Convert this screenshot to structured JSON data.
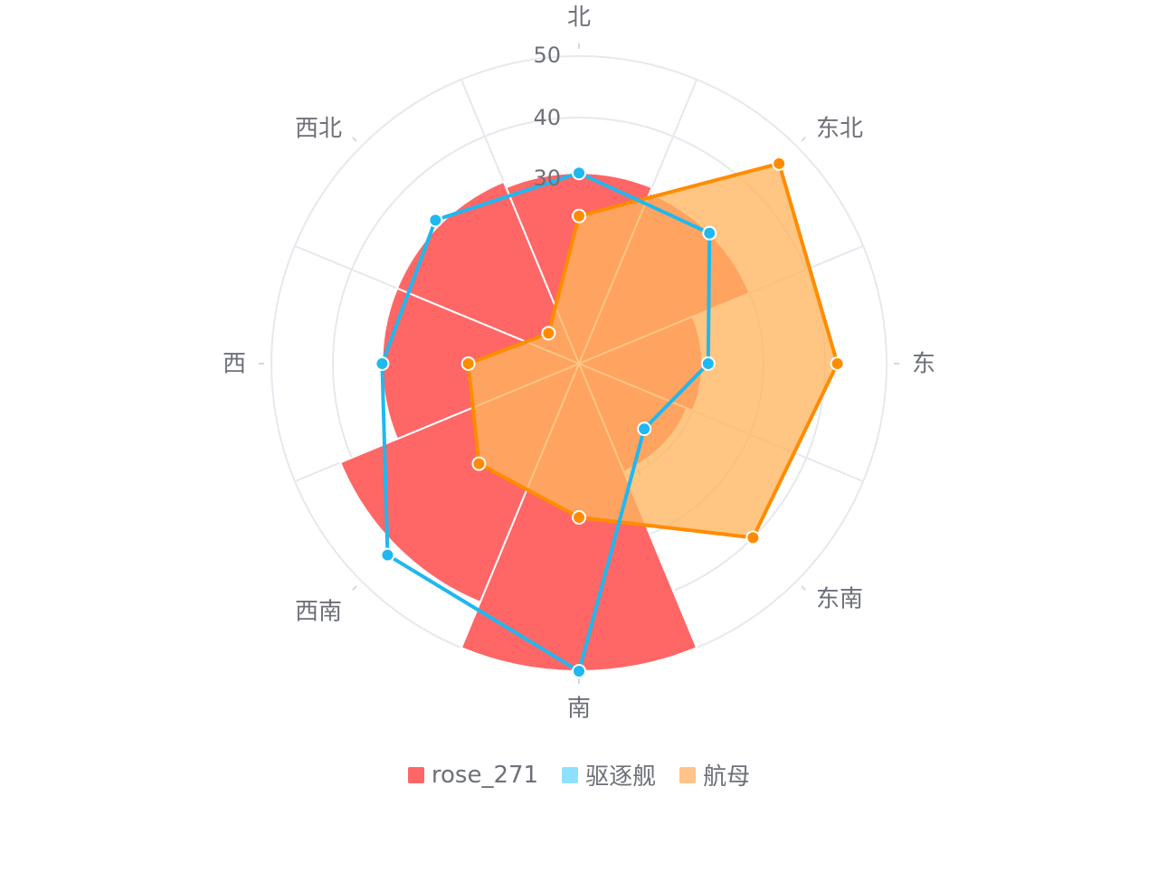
{
  "chart_data": {
    "type": "polar",
    "directions": [
      "北",
      "东北",
      "东",
      "东南",
      "南",
      "西南",
      "西",
      "西北"
    ],
    "radius_axis": {
      "min": 0,
      "max": 50,
      "ticks": [
        10,
        20,
        30,
        40,
        50
      ],
      "visible_tick_labels": [
        "50",
        "40",
        "30"
      ]
    },
    "series": [
      {
        "name": "rose_271",
        "type": "rose",
        "color": "#ff6666",
        "values": [
          31,
          30,
          20,
          19,
          50,
          42,
          32,
          32
        ]
      },
      {
        "name": "驱逐舰",
        "type": "line",
        "color": "#1fb8f0",
        "legend_color": "#8fe0ff",
        "values": [
          31,
          30,
          21,
          15,
          50,
          44,
          32,
          33
        ]
      },
      {
        "name": "航母",
        "type": "area",
        "color": "#ff8c00",
        "legend_color": "#ffc38a",
        "fill": "#ffb55f",
        "values": [
          24,
          46,
          42,
          40,
          25,
          23,
          18,
          7
        ]
      }
    ],
    "legend": {
      "position": "bottom-center"
    }
  }
}
